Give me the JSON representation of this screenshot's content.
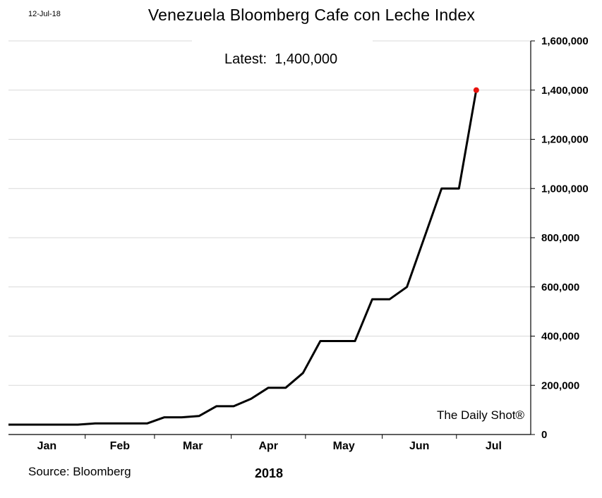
{
  "header": {
    "date": "12-Jul-18",
    "title": "Venezuela Bloomberg Cafe con Leche Index",
    "latest": "Latest:  1,400,000"
  },
  "footer": {
    "source": "Source: Bloomberg",
    "year": "2018",
    "brand": "The Daily Shot®"
  },
  "chart_data": {
    "type": "line",
    "title": "Venezuela Bloomberg Cafe con Leche Index",
    "xlabel": "2018",
    "ylabel": "",
    "ylim": [
      0,
      1600000
    ],
    "yticks": [
      0,
      200000,
      400000,
      600000,
      800000,
      1000000,
      1200000,
      1400000,
      1600000
    ],
    "ytick_labels": [
      "0",
      "200,000",
      "400,000",
      "600,000",
      "800,000",
      "1,000,000",
      "1,200,000",
      "1,400,000",
      "1,600,000"
    ],
    "xlim": [
      "2018-01-01",
      "2018-07-31"
    ],
    "month_ticks": [
      "2018-01-01",
      "2018-02-01",
      "2018-03-01",
      "2018-04-01",
      "2018-05-01",
      "2018-06-01",
      "2018-07-01",
      "2018-08-01"
    ],
    "month_labels": [
      "Jan",
      "Feb",
      "Mar",
      "Apr",
      "May",
      "Jun",
      "Jul"
    ],
    "grid": true,
    "line_color": "#000000",
    "marker_color": "#e8120c",
    "series": [
      {
        "x": [
          "2018-01-01",
          "2018-01-08",
          "2018-01-15",
          "2018-01-22",
          "2018-01-29",
          "2018-02-05",
          "2018-02-12",
          "2018-02-19",
          "2018-02-26",
          "2018-03-05",
          "2018-03-12",
          "2018-03-19",
          "2018-03-26",
          "2018-04-02",
          "2018-04-09",
          "2018-04-16",
          "2018-04-23",
          "2018-04-30",
          "2018-05-07",
          "2018-05-14",
          "2018-05-21",
          "2018-05-28",
          "2018-06-04",
          "2018-06-11",
          "2018-06-18",
          "2018-06-25",
          "2018-07-02",
          "2018-07-09"
        ],
        "values": [
          40000,
          40000,
          40000,
          40000,
          40000,
          45000,
          45000,
          45000,
          45000,
          70000,
          70000,
          75000,
          115000,
          115000,
          145000,
          190000,
          190000,
          250000,
          380000,
          380000,
          380000,
          550000,
          550000,
          600000,
          800000,
          1000000,
          1000000,
          1400000
        ]
      }
    ]
  }
}
